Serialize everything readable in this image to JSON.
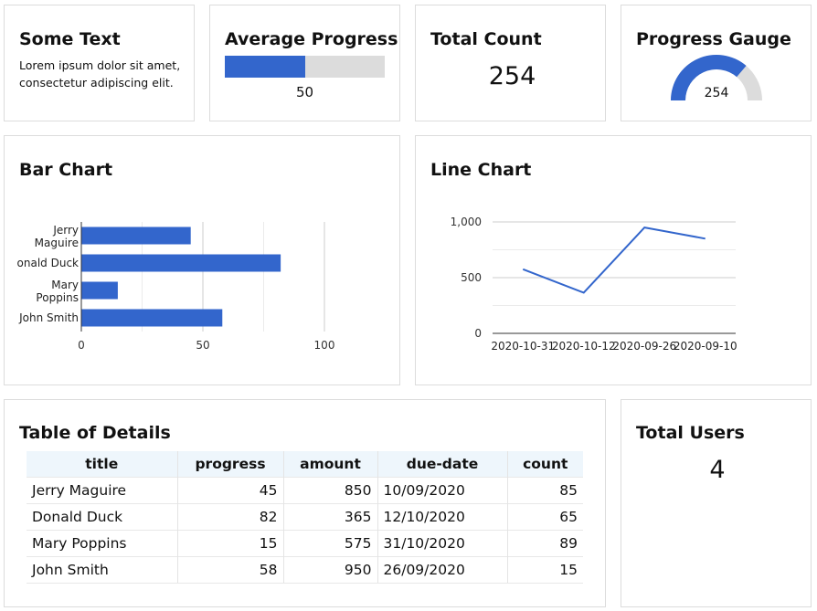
{
  "text_card": {
    "title": "Some Text",
    "body": "Lorem ipsum dolor sit amet, consectetur adipiscing elit."
  },
  "avg_progress": {
    "title": "Average Progress",
    "value": 50,
    "max": 100,
    "label": "50",
    "color": "#3366cc"
  },
  "total_count": {
    "title": "Total Count",
    "value": "254"
  },
  "progress_gauge": {
    "title": "Progress Gauge",
    "value": 254,
    "max": 350,
    "label": "254",
    "color": "#3366cc"
  },
  "bar_chart": {
    "title": "Bar Chart"
  },
  "line_chart": {
    "title": "Line Chart"
  },
  "chart_data": [
    {
      "type": "bar",
      "orientation": "horizontal",
      "title": "Bar Chart",
      "categories": [
        "Jerry Maguire",
        "onald Duck",
        "Mary Poppins",
        "John Smith"
      ],
      "values": [
        45,
        82,
        15,
        58
      ],
      "xlim": [
        0,
        100
      ],
      "xticks": [
        0,
        50,
        100
      ],
      "grid": true,
      "color": "#3366cc"
    },
    {
      "type": "line",
      "title": "Line Chart",
      "x": [
        "2020-10-31",
        "2020-10-12",
        "2020-09-26",
        "2020-09-10"
      ],
      "y": [
        575,
        365,
        950,
        850
      ],
      "ylim": [
        0,
        1000
      ],
      "yticks": [
        "0",
        "500",
        "1,000"
      ],
      "grid": true,
      "color": "#3366cc"
    }
  ],
  "details_table": {
    "title": "Table of Details",
    "columns": [
      "title",
      "progress",
      "amount",
      "due-date",
      "count"
    ],
    "rows": [
      [
        "Jerry Maguire",
        "45",
        "850",
        "10/09/2020",
        "85"
      ],
      [
        "Donald Duck",
        "82",
        "365",
        "12/10/2020",
        "65"
      ],
      [
        "Mary Poppins",
        "15",
        "575",
        "31/10/2020",
        "89"
      ],
      [
        "John Smith",
        "58",
        "950",
        "26/09/2020",
        "15"
      ]
    ]
  },
  "total_users": {
    "title": "Total Users",
    "value": "4"
  }
}
